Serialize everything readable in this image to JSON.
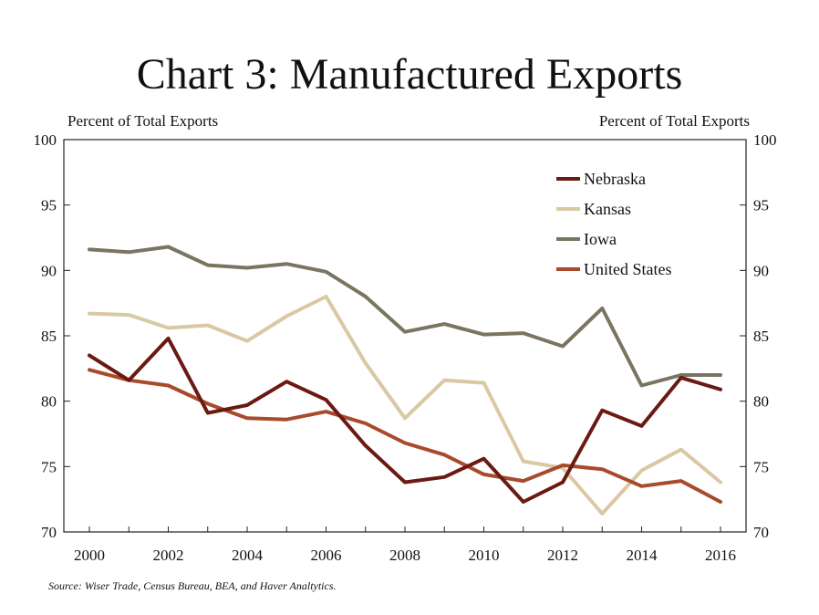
{
  "title": "Chart 3: Manufactured Exports",
  "source": "Source: Wiser Trade, Census Bureau, BEA, and Haver Analtytics.",
  "chart_data": {
    "type": "line",
    "title": "Chart 3: Manufactured Exports",
    "ylabel_left": "Percent of  Total Exports",
    "ylabel_right": "Percent of  Total Exports",
    "xlim": [
      2000,
      2016
    ],
    "ylim": [
      70,
      100
    ],
    "x_ticks": [
      2000,
      2002,
      2004,
      2006,
      2008,
      2010,
      2012,
      2014,
      2016
    ],
    "y_ticks": [
      70,
      75,
      80,
      85,
      90,
      95,
      100
    ],
    "grid": false,
    "legend_position": "top-right",
    "x": [
      2000,
      2001,
      2002,
      2003,
      2004,
      2005,
      2006,
      2007,
      2008,
      2009,
      2010,
      2011,
      2012,
      2013,
      2014,
      2015,
      2016
    ],
    "series": [
      {
        "name": "Nebraska",
        "color": "#6b1a12",
        "values": [
          83.5,
          81.6,
          84.8,
          79.1,
          79.7,
          81.5,
          80.1,
          76.6,
          73.8,
          74.2,
          75.6,
          72.3,
          73.8,
          79.3,
          78.1,
          81.8,
          80.9
        ]
      },
      {
        "name": "Kansas",
        "color": "#d9c9a3",
        "values": [
          86.7,
          86.6,
          85.6,
          85.8,
          84.6,
          86.5,
          88.0,
          82.9,
          78.7,
          81.6,
          81.4,
          75.4,
          74.9,
          71.4,
          74.7,
          76.3,
          73.8
        ]
      },
      {
        "name": "Iowa",
        "color": "#7a7560",
        "values": [
          91.6,
          91.4,
          91.8,
          90.4,
          90.2,
          90.5,
          89.9,
          88.0,
          85.3,
          85.9,
          85.1,
          85.2,
          84.2,
          87.1,
          81.2,
          82.0,
          82.0
        ]
      },
      {
        "name": "United States",
        "color": "#a84a2b",
        "values": [
          82.4,
          81.6,
          81.2,
          79.8,
          78.7,
          78.6,
          79.2,
          78.3,
          76.8,
          75.9,
          74.4,
          73.9,
          75.1,
          74.8,
          73.5,
          73.9,
          72.3
        ]
      }
    ]
  }
}
